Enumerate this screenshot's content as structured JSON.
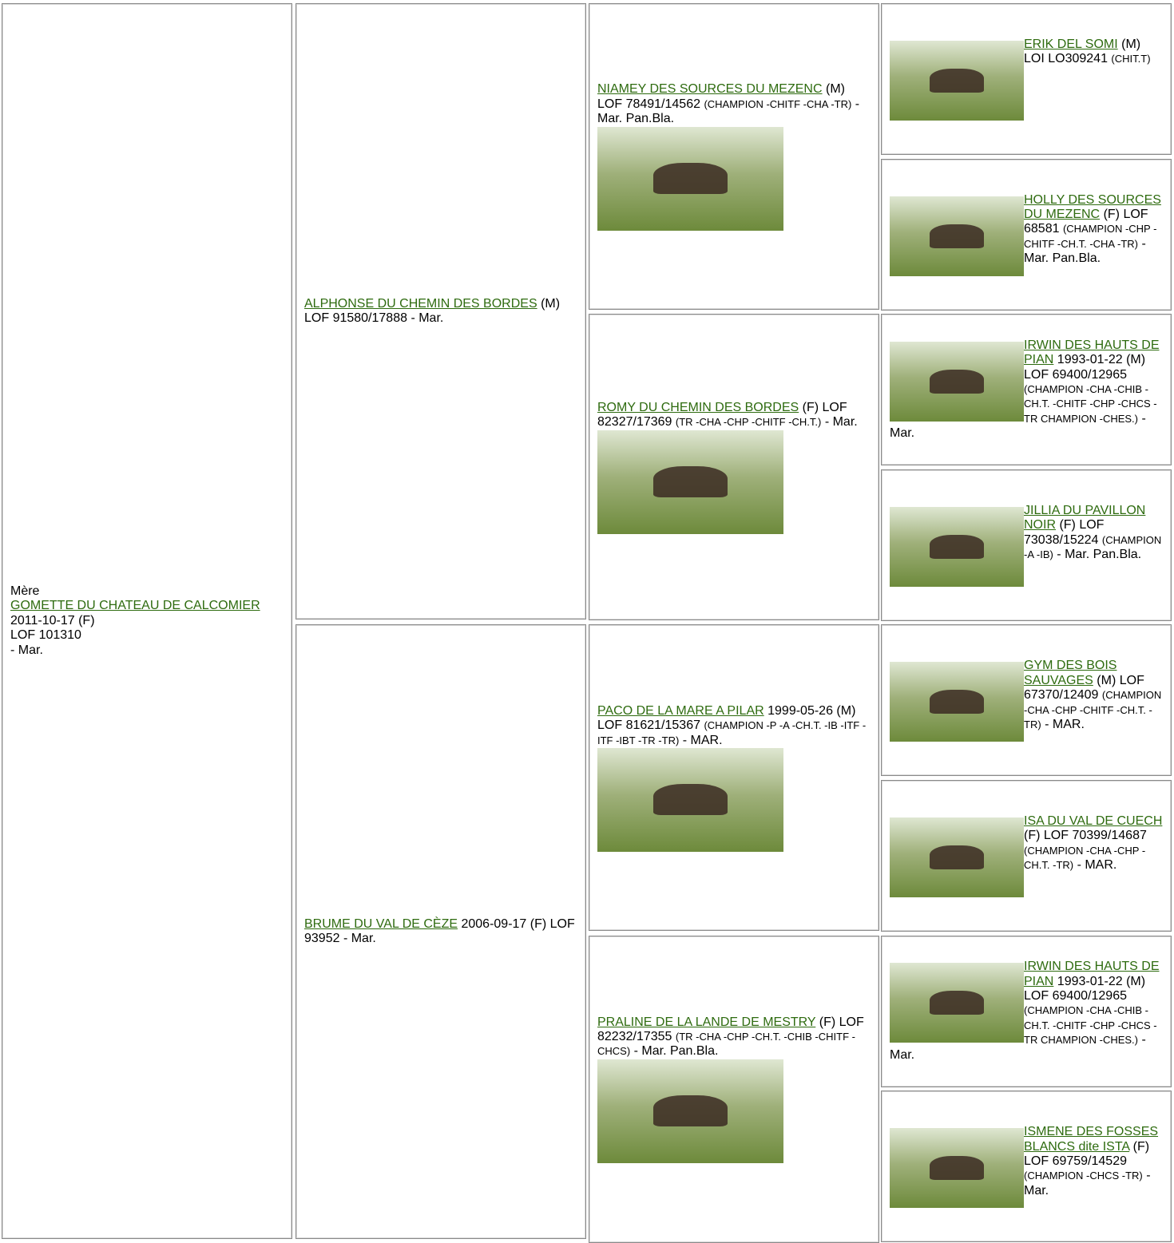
{
  "dam": {
    "label": "Mère",
    "name": "GOMETTE DU CHATEAU DE CALCOMIER",
    "lines": [
      "2011-10-17 (F)",
      "LOF 101310",
      "- Mar."
    ]
  },
  "parents": [
    {
      "name": "ALPHONSE DU CHEMIN DES BORDES",
      "details": "(M) LOF 91580/17888",
      "tail": "- Mar."
    },
    {
      "name": "BRUME DU VAL DE CÈZE",
      "details": "2006-09-17 (F) LOF 93952",
      "tail": "- Mar."
    }
  ],
  "grandparents": [
    {
      "name": "NIAMEY DES SOURCES DU MEZENC",
      "details": "(M) LOF 78491/14562",
      "titles": "(CHAMPION -CHITF -CHA -TR)",
      "tail": "- Mar. Pan.Bla."
    },
    {
      "name": "ROMY DU CHEMIN DES BORDES",
      "details": "(F) LOF 82327/17369",
      "titles": "(TR -CHA -CHP -CHITF -CH.T.)",
      "tail": "- Mar."
    },
    {
      "name": "PACO DE LA MARE A PILAR",
      "details": "1999-05-26 (M) LOF 81621/15367",
      "titles": "(CHAMPION -P -A -CH.T. -IB -ITF -ITF -IBT -TR -TR)",
      "tail": "- MAR."
    },
    {
      "name": "PRALINE DE LA LANDE DE MESTRY",
      "details": "(F) LOF 82232/17355",
      "titles": "(TR -CHA -CHP -CH.T. -CHIB -CHITF -CHCS)",
      "tail": "- Mar. Pan.Bla."
    }
  ],
  "great_grandparents": [
    {
      "name": "ERIK DEL SOMI",
      "details": "(M) LOI LO309241",
      "titles": "(CHIT.T)"
    },
    {
      "name": "HOLLY DES SOURCES DU MEZENC",
      "details": "(F) LOF 68581",
      "titles": "(CHAMPION -CHP -CHITF -CH.T. -CHA -TR)",
      "tail": "- Mar. Pan.Bla."
    },
    {
      "name": "IRWIN DES HAUTS DE PIAN",
      "details": "1993-01-22 (M) LOF 69400/12965",
      "titles": "(CHAMPION -CHA -CHIB -CH.T. -CHITF -CHP -CHCS -TR CHAMPION -CHES.)",
      "tail": "- Mar."
    },
    {
      "name": "JILLIA DU PAVILLON NOIR",
      "details": "(F) LOF 73038/15224",
      "titles": "(CHAMPION -A -IB)",
      "tail": "- Mar. Pan.Bla."
    },
    {
      "name": "GYM DES BOIS SAUVAGES",
      "details": "(M) LOF 67370/12409",
      "titles": "(CHAMPION -CHA -CHP -CHITF -CH.T. -TR)",
      "tail": "- MAR."
    },
    {
      "name": "ISA DU VAL DE CUECH",
      "details": "(F) LOF 70399/14687",
      "titles": "(CHAMPION -CHA -CHP -CH.T. -TR)",
      "tail": "- MAR."
    },
    {
      "name": "IRWIN DES HAUTS DE PIAN",
      "details": "1993-01-22 (M) LOF 69400/12965",
      "titles": "(CHAMPION -CHA -CHIB -CH.T. -CHITF -CHP -CHCS -TR CHAMPION -CHES.)",
      "tail": "- Mar."
    },
    {
      "name": "ISMENE DES FOSSES BLANCS dite ISTA",
      "details": "(F) LOF 69759/14529",
      "titles": "(CHAMPION -CHCS -TR)",
      "tail": "- Mar."
    }
  ]
}
